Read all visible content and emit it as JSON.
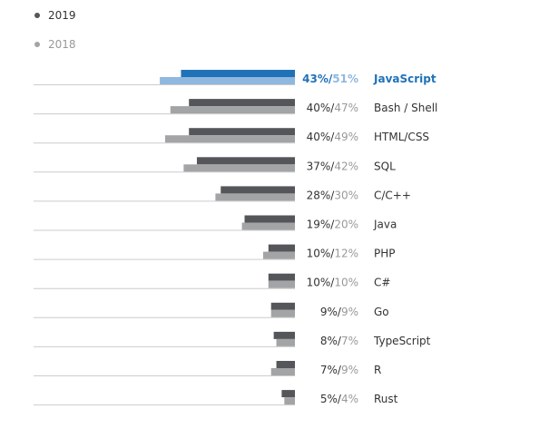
{
  "chart_data": {
    "type": "bar",
    "orientation": "horizontal",
    "legend": {
      "placement": "top-left",
      "items": [
        {
          "label": "2019",
          "color": "#55565a"
        },
        {
          "label": "2018",
          "color": "#a3a4a6"
        }
      ]
    },
    "colors": {
      "current": "#55565a",
      "previous": "#a3a4a6",
      "highlight_current": "#2072b8",
      "highlight_previous": "#8fb8de",
      "highlight_text": "#2072b8",
      "text": "#333333",
      "muted_text": "#999999",
      "baseline": "#cccccc"
    },
    "xlim": [
      0,
      100
    ],
    "highlight_index": 0,
    "categories": [
      "JavaScript",
      "Bash / Shell",
      "HTML/CSS",
      "SQL",
      "C/C++",
      "Java",
      "PHP",
      "C#",
      "Go",
      "TypeScript",
      "R",
      "Rust"
    ],
    "series": [
      {
        "name": "2019",
        "values": [
          43,
          40,
          40,
          37,
          28,
          19,
          10,
          10,
          9,
          8,
          7,
          5
        ]
      },
      {
        "name": "2018",
        "values": [
          51,
          47,
          49,
          42,
          30,
          20,
          12,
          10,
          9,
          7,
          9,
          4
        ]
      }
    ],
    "labels_2019": [
      "43%",
      "40%",
      "40%",
      "37%",
      "28%",
      "19%",
      "10%",
      "10%",
      "9%",
      "8%",
      "7%",
      "5%"
    ],
    "labels_2018": [
      "51%",
      "47%",
      "49%",
      "42%",
      "30%",
      "20%",
      "12%",
      "10%",
      "9%",
      "7%",
      "9%",
      "4%"
    ]
  }
}
